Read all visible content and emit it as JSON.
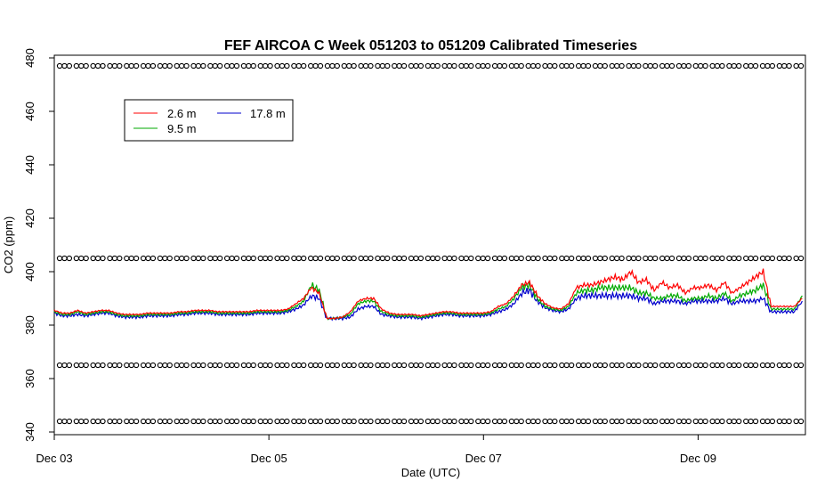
{
  "chart_data": {
    "type": "line",
    "title": "FEF AIRCOA C  Week 051203 to 051209  Calibrated Timeseries",
    "xlabel": "Date (UTC)",
    "ylabel": "CO2 (ppm)",
    "x_ticks": [
      "Dec 03",
      "Dec 05",
      "Dec 07",
      "Dec 09"
    ],
    "x_tick_days": [
      3,
      5,
      7,
      9
    ],
    "xlim": [
      3.0,
      10.0
    ],
    "y_ticks": [
      340,
      360,
      380,
      400,
      420,
      440,
      460,
      480
    ],
    "ylim": [
      339,
      481
    ],
    "grid": false,
    "legend": {
      "placement": "top-left",
      "entries": [
        {
          "label": "2.6 m",
          "color": "#ff0000"
        },
        {
          "label": "17.8 m",
          "color": "#0000cc"
        },
        {
          "label": "9.5 m",
          "color": "#00aa00"
        }
      ]
    },
    "x_start": 3.0,
    "x_end": 9.97,
    "series": [
      {
        "name": "17.8 m",
        "color": "#0000cc",
        "y": [
          384.5,
          383.5,
          383.5,
          384,
          383.5,
          384,
          384.5,
          384.5,
          383.5,
          383,
          383,
          383,
          383.5,
          383.5,
          383.5,
          383.5,
          384,
          384,
          384.5,
          384.5,
          384.5,
          384,
          384,
          384,
          384,
          384,
          384.5,
          384.5,
          384.5,
          384.5,
          385,
          386,
          387.5,
          391,
          390,
          382.5,
          382.5,
          382.5,
          383,
          386,
          387,
          387,
          384,
          383.5,
          383,
          383,
          383,
          382.5,
          383,
          383.5,
          384,
          384,
          383.5,
          383.5,
          383.5,
          383.5,
          384,
          385,
          386,
          388,
          392,
          393,
          389,
          386.5,
          385.5,
          385,
          386,
          390,
          391,
          391,
          391,
          391,
          391,
          391,
          391,
          390,
          390,
          388,
          389,
          389,
          389,
          388,
          389,
          389,
          389,
          389,
          390,
          388,
          389,
          389,
          389,
          390,
          385,
          385,
          385,
          385,
          389
        ]
      },
      {
        "name": "9.5 m",
        "color": "#00aa00",
        "y": [
          385,
          384,
          384,
          385,
          384,
          384.5,
          385,
          385,
          384,
          383.5,
          383.5,
          383.5,
          384,
          384,
          384,
          384,
          384.5,
          384.5,
          385,
          385,
          385,
          384.5,
          384.5,
          384.5,
          384.5,
          384.5,
          385,
          385,
          385,
          385,
          385.5,
          387,
          389,
          395,
          393,
          382.5,
          382.5,
          383,
          384,
          388,
          389,
          389,
          385,
          384,
          383.5,
          383.5,
          383.5,
          383,
          383.5,
          384,
          384.5,
          384.5,
          384,
          384,
          384,
          384,
          384.5,
          386,
          387,
          390,
          394,
          395,
          390,
          387,
          386,
          385.5,
          387,
          392,
          393,
          393,
          394,
          394,
          394,
          394,
          394,
          392,
          392,
          390,
          390,
          391,
          391,
          389,
          390,
          390,
          391,
          390,
          392,
          389,
          391,
          392,
          393,
          395,
          386,
          386,
          386,
          386,
          391
        ]
      },
      {
        "name": "2.6 m",
        "color": "#ff0000",
        "y": [
          385.5,
          384.5,
          384.5,
          385.5,
          384.5,
          385,
          385.5,
          385.5,
          384.5,
          384,
          384,
          384,
          384.5,
          384.5,
          384.5,
          384.5,
          385,
          385,
          385.5,
          385.5,
          385.5,
          385,
          385,
          385,
          385,
          385,
          385.5,
          385.5,
          385.5,
          385.5,
          386,
          388,
          390,
          394,
          392,
          382.5,
          382.5,
          383,
          385,
          389,
          390,
          390,
          386,
          384.5,
          384,
          384,
          384,
          383.5,
          384,
          384.5,
          385,
          385,
          384.5,
          384.5,
          384.5,
          384.5,
          385,
          387,
          388,
          391,
          395,
          396,
          391,
          388,
          386.5,
          386,
          388,
          394,
          395,
          395,
          396,
          397,
          398,
          397,
          400,
          396,
          397,
          393,
          396,
          394,
          395,
          392,
          394,
          394,
          395,
          393,
          396,
          392,
          394,
          396,
          398,
          400,
          387,
          387,
          387,
          387,
          390
        ]
      }
    ],
    "reference_rows": [
      477,
      405,
      365,
      344
    ]
  }
}
